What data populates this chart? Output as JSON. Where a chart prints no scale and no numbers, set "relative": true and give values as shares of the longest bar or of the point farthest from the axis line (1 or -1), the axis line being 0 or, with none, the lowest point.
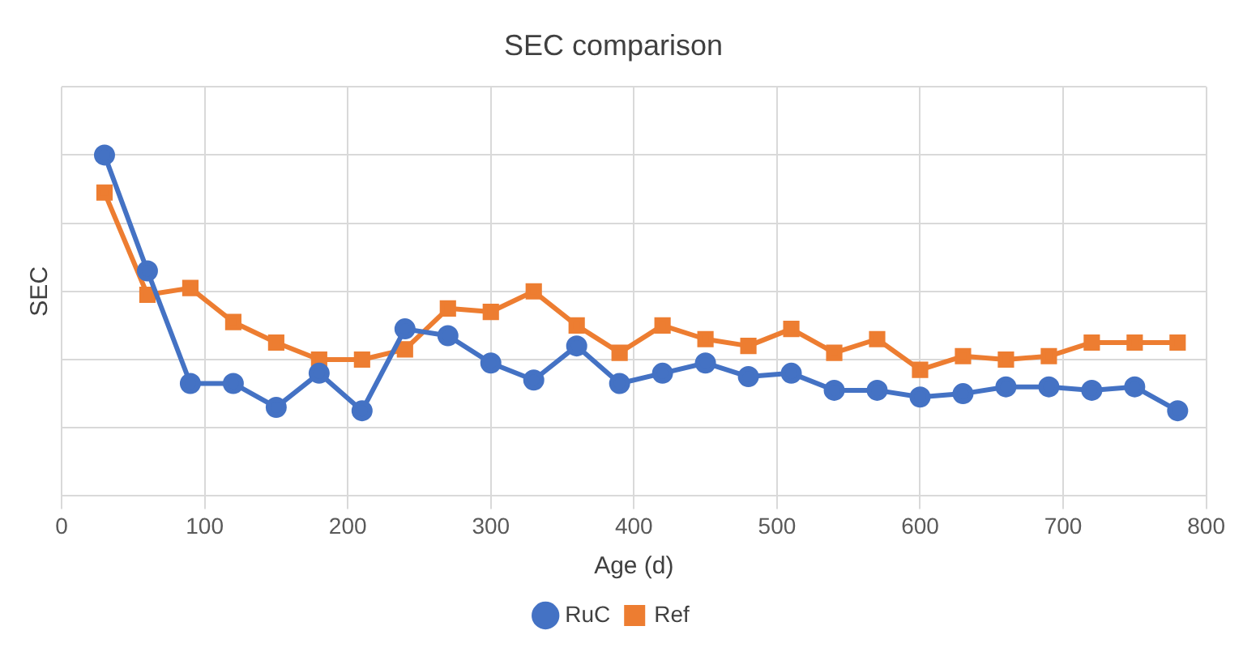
{
  "chart_data": {
    "type": "line",
    "title": "SEC comparison",
    "xlabel": "Age (d)",
    "ylabel": "SEC",
    "relative": true,
    "x": [
      30,
      60,
      90,
      120,
      150,
      180,
      210,
      240,
      270,
      300,
      330,
      360,
      390,
      420,
      450,
      480,
      510,
      540,
      570,
      600,
      630,
      660,
      690,
      720,
      750,
      780
    ],
    "xlim": [
      0,
      800
    ],
    "xticks": [
      0,
      100,
      200,
      300,
      400,
      500,
      600,
      700,
      800
    ],
    "grid": true,
    "legend": "bottom",
    "line_style": "solid",
    "series": [
      {
        "name": "RuC",
        "color": "#4472c4",
        "marker": "circle",
        "values": [
          1,
          0.66,
          0.33,
          0.33,
          0.26,
          0.36,
          0.25,
          0.49,
          0.47,
          0.39,
          0.34,
          0.44,
          0.33,
          0.36,
          0.39,
          0.35,
          0.36,
          0.31,
          0.31,
          0.29,
          0.3,
          0.32,
          0.32,
          0.31,
          0.32,
          0.25
        ]
      },
      {
        "name": "Ref",
        "color": "#ed7d31",
        "marker": "square",
        "values": [
          0.89,
          0.59,
          0.61,
          0.51,
          0.45,
          0.4,
          0.4,
          0.43,
          0.55,
          0.54,
          0.6,
          0.5,
          0.42,
          0.5,
          0.46,
          0.44,
          0.49,
          0.42,
          0.46,
          0.37,
          0.41,
          0.4,
          0.41,
          0.45,
          0.45,
          0.45
        ]
      }
    ]
  }
}
